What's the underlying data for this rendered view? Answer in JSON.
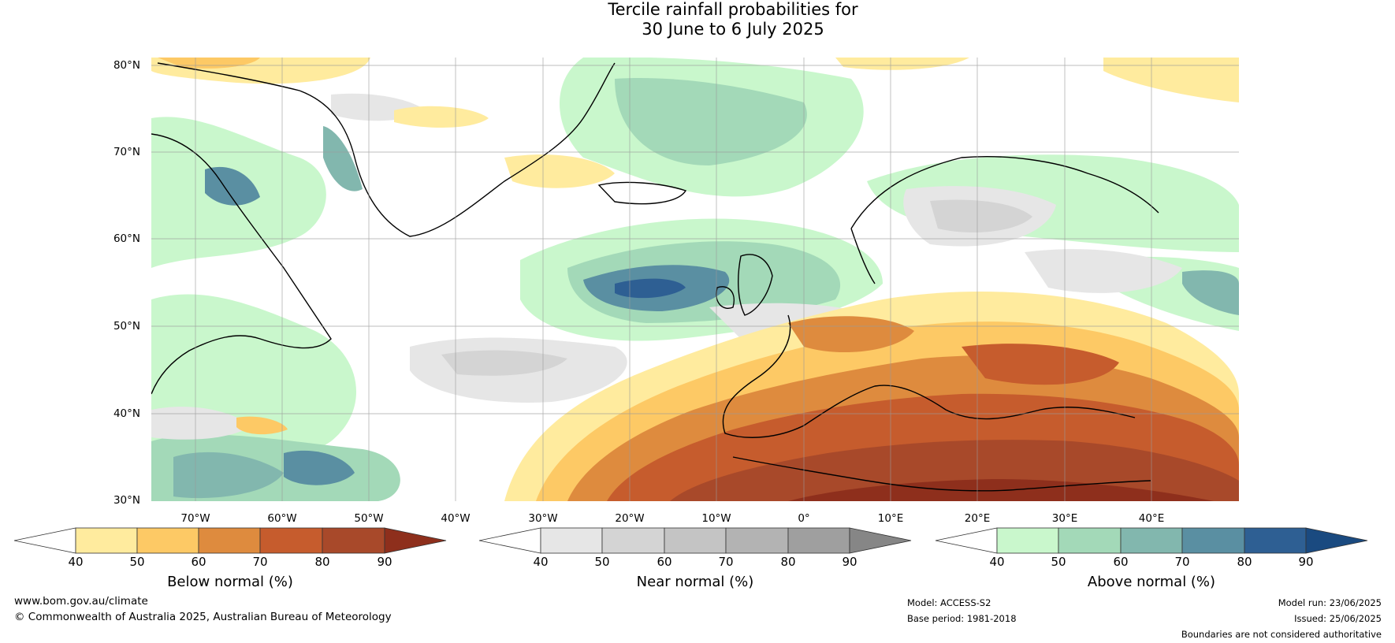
{
  "title": {
    "line1": "Tercile rainfall probabilities for",
    "line2": "30 June to 6 July 2025"
  },
  "axes": {
    "lat_labels": [
      "80°N",
      "70°N",
      "60°N",
      "50°N",
      "40°N",
      "30°N"
    ],
    "lon_labels": [
      "70°W",
      "60°W",
      "50°W",
      "40°W",
      "30°W",
      "20°W",
      "10°W",
      "0°",
      "10°E",
      "20°E",
      "30°E",
      "40°E"
    ]
  },
  "colorbars": [
    {
      "label": "Below normal (%)",
      "ticks": [
        "40",
        "50",
        "60",
        "70",
        "80",
        "90"
      ],
      "colors": [
        "#ffffff",
        "#ffeb9e",
        "#fdc965",
        "#de8b3e",
        "#c65c2d",
        "#a8492a",
        "#8e2f1c"
      ]
    },
    {
      "label": "Near normal (%)",
      "ticks": [
        "40",
        "50",
        "60",
        "70",
        "80",
        "90"
      ],
      "colors": [
        "#ffffff",
        "#e6e6e6",
        "#d4d4d4",
        "#c4c4c4",
        "#b3b3b3",
        "#9f9f9f",
        "#868686"
      ]
    },
    {
      "label": "Above normal (%)",
      "ticks": [
        "40",
        "50",
        "60",
        "70",
        "80",
        "90"
      ],
      "colors": [
        "#ffffff",
        "#c9f7cc",
        "#a3d9b8",
        "#82b7ae",
        "#5a8fa2",
        "#2e5f93",
        "#1a4a80"
      ]
    }
  ],
  "footer": {
    "website": "www.bom.gov.au/climate",
    "copyright": "© Commonwealth of Australia 2025, Australian Bureau of Meteorology",
    "model": "Model: ACCESS-S2",
    "base_period": "Base period: 1981-2018",
    "model_run": "Model run: 23/06/2025",
    "issued": "Issued: 25/06/2025",
    "disclaimer": "Boundaries are not considered authoritative"
  }
}
